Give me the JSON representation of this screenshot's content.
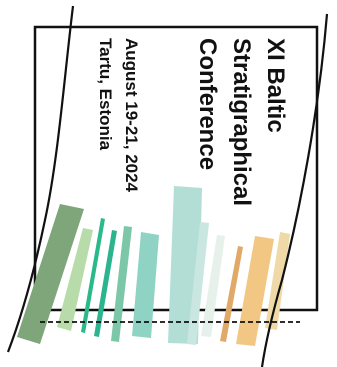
{
  "logo": {
    "title_line_1": "XI Baltic",
    "title_line_2": "Stratigraphical",
    "title_line_3": "Conference",
    "dates": "August 19-21, 2024",
    "location": "Tartu, Estonia"
  },
  "colors": {
    "frame": "#111111",
    "text": "#111111",
    "background": "#ffffff",
    "strata": [
      "#7fa57a",
      "#b7dba9",
      "#29b98a",
      "#2bb48d",
      "#7cc7a8",
      "#8fd3c4",
      "#b2ded5",
      "#c9e6e0",
      "#e6f1ec",
      "#e0a968",
      "#f2c784",
      "#efd9a6"
    ]
  }
}
